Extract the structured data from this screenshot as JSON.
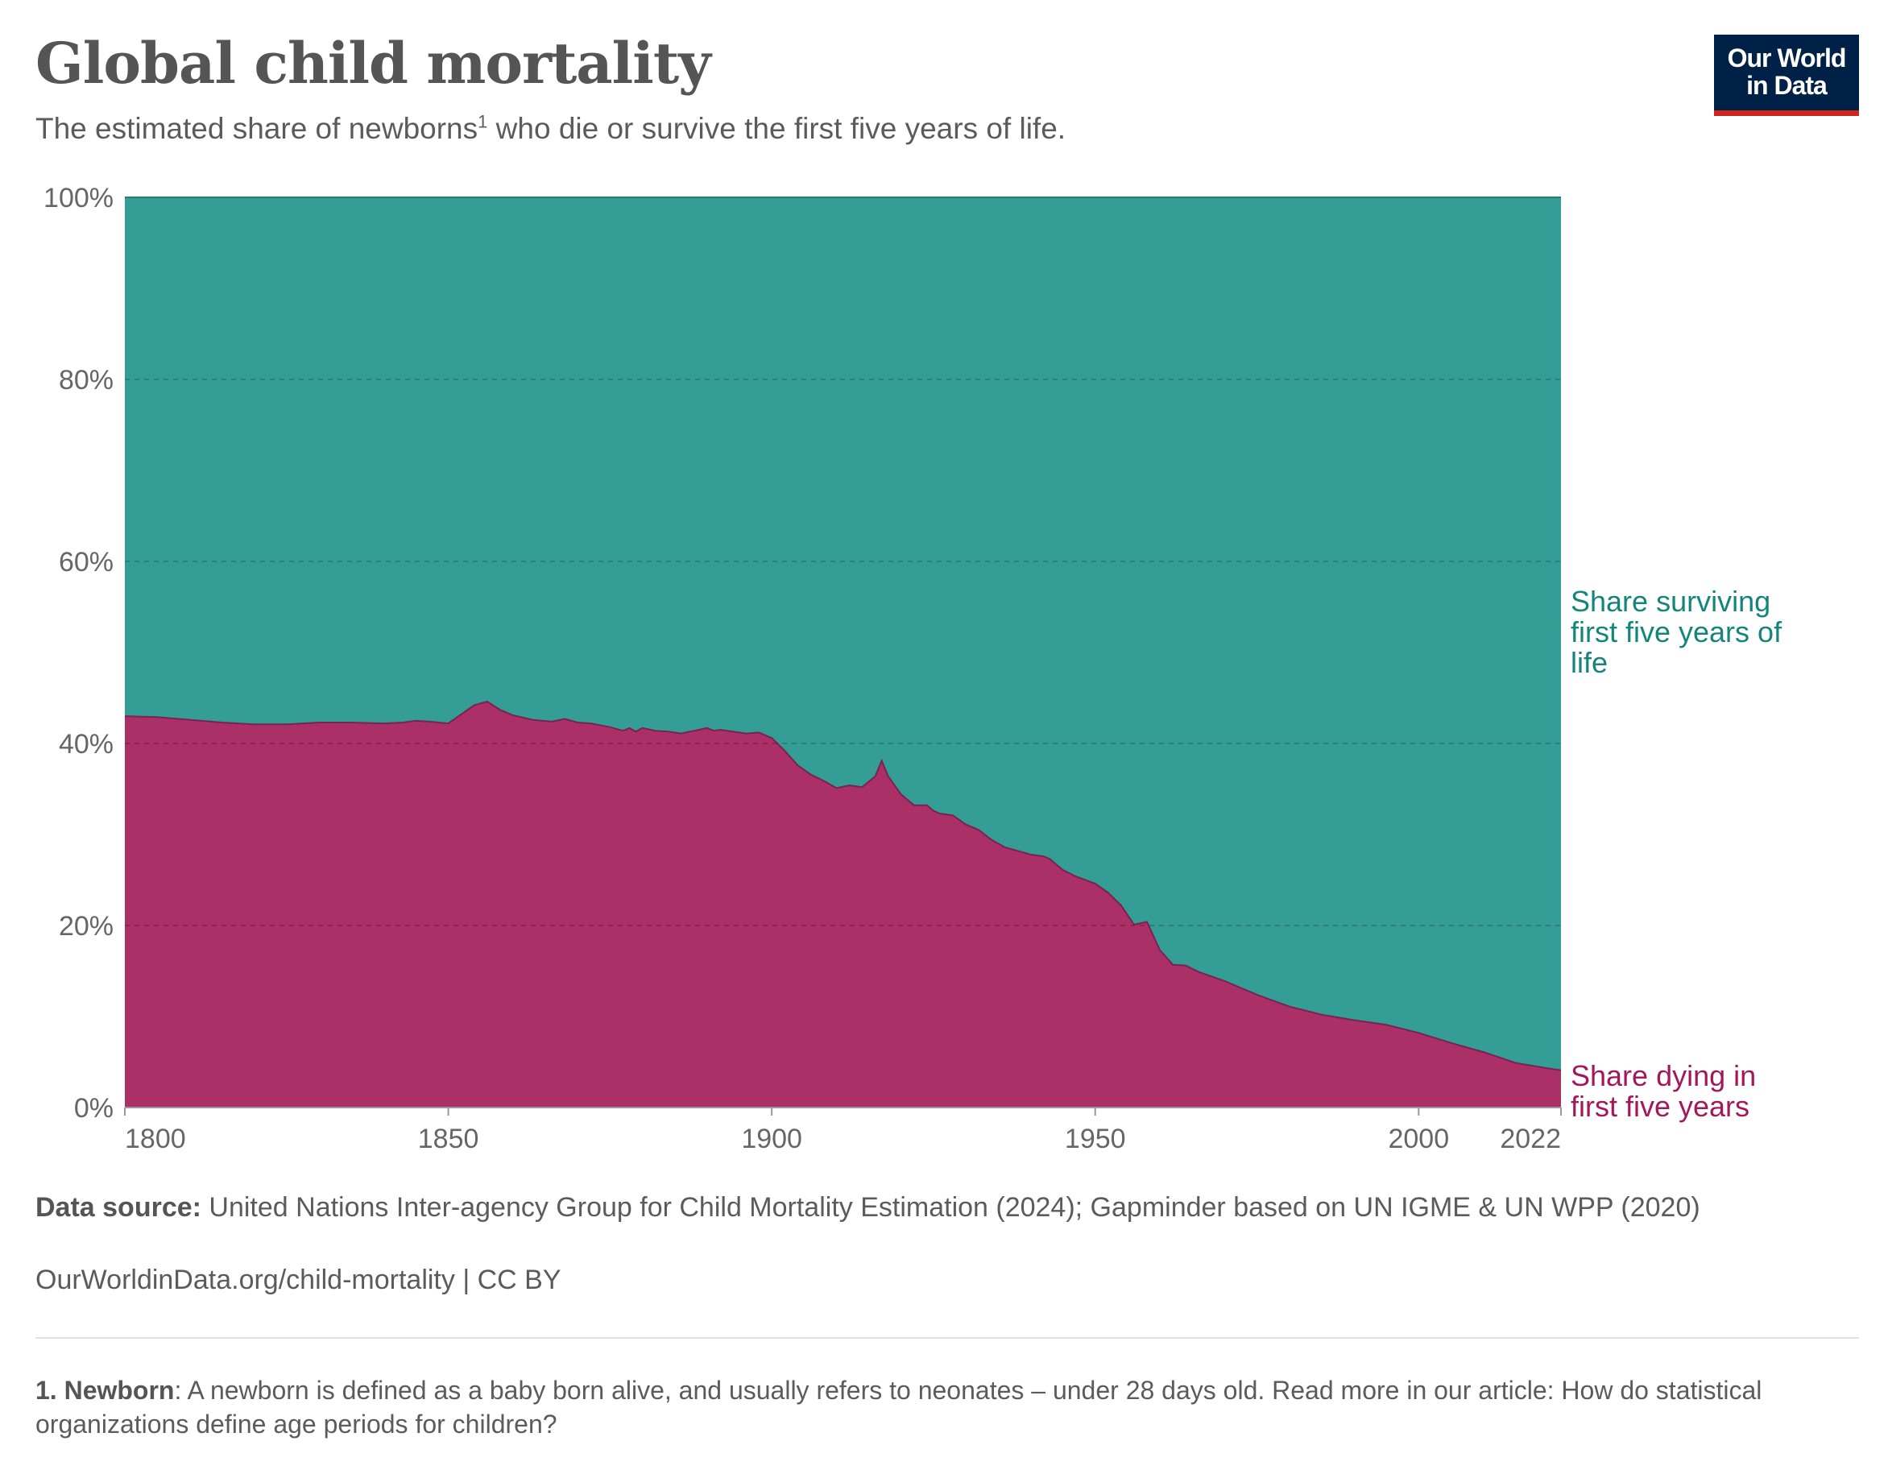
{
  "header": {
    "title": "Global child mortality",
    "subtitle_before": "The estimated share of newborns",
    "subtitle_sup": "1",
    "subtitle_after": " who die or survive the first five years of life."
  },
  "logo": {
    "line1": "Our World",
    "line2": "in Data"
  },
  "colors": {
    "dying": "#ab3068",
    "surviving": "#349e96",
    "dying_label": "#a2185b",
    "surviving_label": "#15857b"
  },
  "chart_data": {
    "type": "area",
    "stacked": true,
    "y_format": "percent",
    "ylim": [
      0,
      100
    ],
    "xlim": [
      1800,
      2022
    ],
    "yticks": [
      0,
      20,
      40,
      60,
      80,
      100
    ],
    "ytick_labels": [
      "0%",
      "20%",
      "40%",
      "60%",
      "80%",
      "100%"
    ],
    "xticks": [
      1800,
      1850,
      1900,
      1950,
      2000,
      2022
    ],
    "xtick_labels": [
      "1800",
      "1850",
      "1900",
      "1950",
      "2000",
      "2022"
    ],
    "grid": "horizontal dashed",
    "x": [
      1800,
      1805,
      1810,
      1815,
      1820,
      1825,
      1830,
      1835,
      1840,
      1843,
      1845,
      1847,
      1850,
      1852,
      1854,
      1856,
      1858,
      1860,
      1863,
      1866,
      1868,
      1870,
      1872,
      1875,
      1877,
      1878,
      1879,
      1880,
      1882,
      1884,
      1886,
      1888,
      1890,
      1891,
      1892,
      1894,
      1896,
      1898,
      1900,
      1902,
      1904,
      1906,
      1908,
      1910,
      1912,
      1914,
      1916,
      1917,
      1918,
      1920,
      1922,
      1924,
      1925,
      1926,
      1928,
      1930,
      1932,
      1934,
      1936,
      1938,
      1940,
      1942,
      1943,
      1945,
      1947,
      1950,
      1952,
      1954,
      1956,
      1958,
      1960,
      1962,
      1964,
      1966,
      1968,
      1970,
      1975,
      1980,
      1985,
      1990,
      1995,
      2000,
      2005,
      2010,
      2015,
      2020,
      2022
    ],
    "series": [
      {
        "name": "Share dying in first five years",
        "values": [
          43,
          42.9,
          42.6,
          42.3,
          42.1,
          42.1,
          42.3,
          42.3,
          42.2,
          42.3,
          42.5,
          42.4,
          42.2,
          43.2,
          44.2,
          44.6,
          43.7,
          43.1,
          42.6,
          42.4,
          42.7,
          42.3,
          42.2,
          41.8,
          41.4,
          41.7,
          41.3,
          41.7,
          41.4,
          41.3,
          41.1,
          41.4,
          41.7,
          41.4,
          41.5,
          41.3,
          41.1,
          41.2,
          40.6,
          39.2,
          37.6,
          36.6,
          35.9,
          35.1,
          35.4,
          35.2,
          36.4,
          38.1,
          36.4,
          34.4,
          33.2,
          33.2,
          32.6,
          32.3,
          32.1,
          31.1,
          30.5,
          29.4,
          28.6,
          28.2,
          27.8,
          27.6,
          27.3,
          26.1,
          25.4,
          24.6,
          23.6,
          22.2,
          20.1,
          20.4,
          17.3,
          15.7,
          15.6,
          14.9,
          14.4,
          13.9,
          12.4,
          11.1,
          10.2,
          9.6,
          9.1,
          8.2,
          7.1,
          6.1,
          4.9,
          4.3,
          4.1
        ]
      },
      {
        "name": "Share surviving first five years of life",
        "values": [
          57,
          57.1,
          57.4,
          57.7,
          57.9,
          57.9,
          57.7,
          57.7,
          57.8,
          57.7,
          57.5,
          57.6,
          57.8,
          56.8,
          55.8,
          55.4,
          56.3,
          56.9,
          57.4,
          57.6,
          57.3,
          57.7,
          57.8,
          58.2,
          58.6,
          58.3,
          58.7,
          58.3,
          58.6,
          58.7,
          58.9,
          58.6,
          58.3,
          58.6,
          58.5,
          58.7,
          58.9,
          58.8,
          59.4,
          60.8,
          62.4,
          63.4,
          64.1,
          64.9,
          64.6,
          64.8,
          63.6,
          61.9,
          63.6,
          65.6,
          66.8,
          66.8,
          67.4,
          67.7,
          67.9,
          68.9,
          69.5,
          70.6,
          71.4,
          71.8,
          72.2,
          72.4,
          72.7,
          73.9,
          74.6,
          75.4,
          76.4,
          77.8,
          79.9,
          79.6,
          82.7,
          84.3,
          84.4,
          85.1,
          85.6,
          86.1,
          87.6,
          88.9,
          89.8,
          90.4,
          90.9,
          91.8,
          92.9,
          93.9,
          95.1,
          95.7,
          95.9
        ]
      }
    ],
    "labels": {
      "surviving": [
        "Share surviving",
        "first five years of",
        "life"
      ],
      "dying": [
        "Share dying in",
        "first five years"
      ]
    }
  },
  "footer": {
    "source_label": "Data source:",
    "source_text": " United Nations Inter-agency Group for Child Mortality Estimation (2024); Gapminder based on UN IGME & UN WPP (2020)",
    "url": "OurWorldinData.org/child-mortality | CC BY",
    "footnote_label": "1. Newborn",
    "footnote_text": ": A newborn is defined as a baby born alive, and usually refers to neonates – under 28 days old. Read more in our article: How do statistical organizations define age periods for children?"
  }
}
